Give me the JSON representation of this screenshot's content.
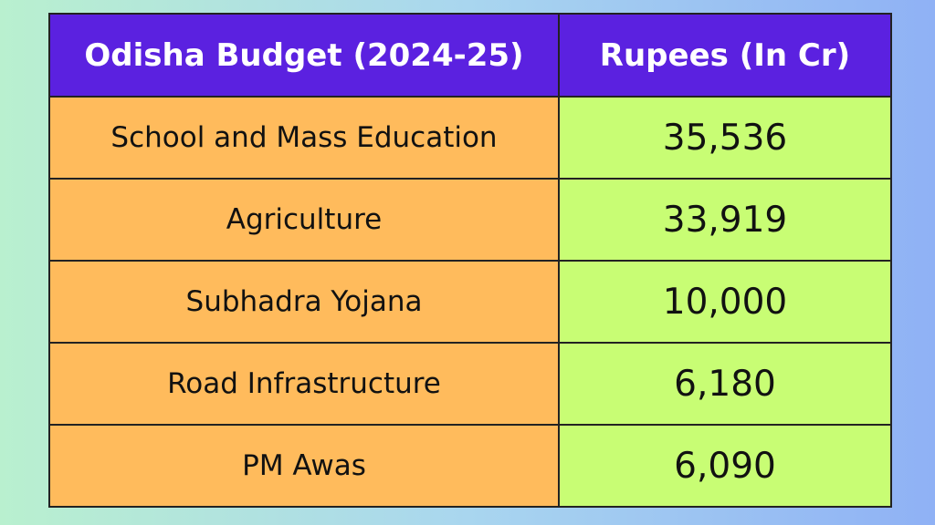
{
  "table": {
    "headers": [
      "Odisha Budget (2024-25)",
      "Rupees (In Cr)"
    ],
    "rows": [
      {
        "category": "School and Mass Education",
        "value": "35,536"
      },
      {
        "category": "Agriculture",
        "value": "33,919"
      },
      {
        "category": "Subhadra Yojana",
        "value": "10,000"
      },
      {
        "category": "Road Infrastructure",
        "value": "6,180"
      },
      {
        "category": "PM Awas",
        "value": "6,090"
      }
    ]
  },
  "colors": {
    "header_bg": "#5b21e0",
    "category_bg": "#ffbb5c",
    "value_bg": "#c8fd74",
    "page_gradient": [
      "#b9f0cf",
      "#8fb1f5"
    ]
  }
}
